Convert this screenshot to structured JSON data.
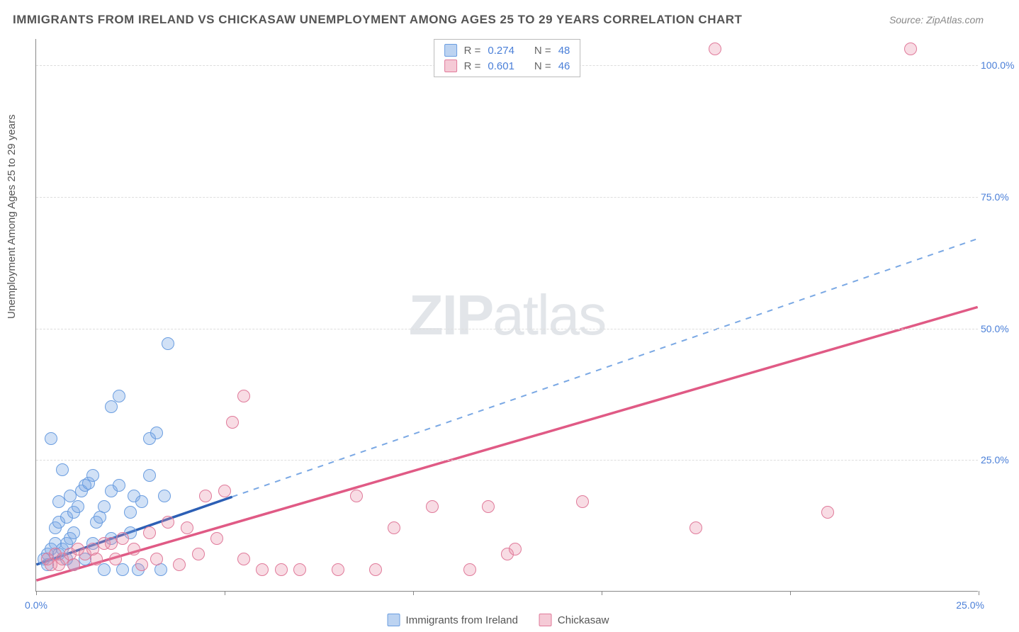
{
  "title": "IMMIGRANTS FROM IRELAND VS CHICKASAW UNEMPLOYMENT AMONG AGES 25 TO 29 YEARS CORRELATION CHART",
  "source": "Source: ZipAtlas.com",
  "ylabel": "Unemployment Among Ages 25 to 29 years",
  "watermark_a": "ZIP",
  "watermark_b": "atlas",
  "chart": {
    "type": "scatter",
    "xlim": [
      0,
      25
    ],
    "ylim": [
      0,
      105
    ],
    "xticks": [
      0,
      5,
      10,
      15,
      20,
      25
    ],
    "xtick_labels": [
      "0.0%",
      "",
      "",
      "",
      "",
      "25.0%"
    ],
    "yticks": [
      25,
      50,
      75,
      100
    ],
    "ytick_labels": [
      "25.0%",
      "50.0%",
      "75.0%",
      "100.0%"
    ],
    "grid_color": "#dddddd",
    "axis_color": "#888888",
    "background_color": "#ffffff"
  },
  "series": {
    "blue": {
      "label": "Immigrants from Ireland",
      "marker_fill": "rgba(122,168,228,0.35)",
      "marker_stroke": "#6a9de0",
      "line_color": "#2c5fb5",
      "line_dash_color": "#7aa8e4",
      "R": "0.274",
      "N": "48",
      "trend_start": [
        0,
        5
      ],
      "trend_end": [
        25,
        67
      ],
      "solid_until_x": 5.2,
      "points": [
        [
          0.3,
          7
        ],
        [
          0.4,
          8
        ],
        [
          0.5,
          9
        ],
        [
          0.6,
          7
        ],
        [
          0.7,
          8
        ],
        [
          0.8,
          9
        ],
        [
          0.9,
          10
        ],
        [
          1.0,
          11
        ],
        [
          0.5,
          12
        ],
        [
          0.6,
          13
        ],
        [
          0.8,
          14
        ],
        [
          1.0,
          15
        ],
        [
          1.1,
          16
        ],
        [
          1.2,
          19
        ],
        [
          1.3,
          20
        ],
        [
          1.4,
          20.5
        ],
        [
          0.6,
          17
        ],
        [
          0.9,
          18
        ],
        [
          1.5,
          22
        ],
        [
          1.6,
          13
        ],
        [
          1.7,
          14
        ],
        [
          1.8,
          16
        ],
        [
          2.0,
          19
        ],
        [
          2.2,
          20
        ],
        [
          2.5,
          15
        ],
        [
          2.6,
          18
        ],
        [
          2.8,
          17
        ],
        [
          3.0,
          29
        ],
        [
          3.2,
          30
        ],
        [
          2.0,
          35
        ],
        [
          2.2,
          37
        ],
        [
          3.5,
          47
        ],
        [
          0.4,
          29
        ],
        [
          0.7,
          23
        ],
        [
          1.0,
          5
        ],
        [
          1.3,
          6
        ],
        [
          1.8,
          4
        ],
        [
          2.3,
          4
        ],
        [
          2.7,
          4
        ],
        [
          3.3,
          4
        ],
        [
          1.5,
          9
        ],
        [
          2.0,
          10
        ],
        [
          2.5,
          11
        ],
        [
          3.0,
          22
        ],
        [
          3.4,
          18
        ],
        [
          0.2,
          6
        ],
        [
          0.3,
          5
        ],
        [
          0.8,
          6
        ]
      ]
    },
    "pink": {
      "label": "Chickasaw",
      "marker_fill": "rgba(232,138,164,0.30)",
      "marker_stroke": "#e07a9a",
      "line_color": "#e05a85",
      "R": "0.601",
      "N": "46",
      "trend_start": [
        0,
        2
      ],
      "trend_end": [
        25,
        54
      ],
      "points": [
        [
          0.3,
          6
        ],
        [
          0.5,
          7
        ],
        [
          0.7,
          6
        ],
        [
          0.9,
          7
        ],
        [
          1.1,
          8
        ],
        [
          1.3,
          7
        ],
        [
          1.5,
          8
        ],
        [
          1.8,
          9
        ],
        [
          2.0,
          9
        ],
        [
          2.3,
          10
        ],
        [
          2.6,
          8
        ],
        [
          3.0,
          11
        ],
        [
          3.5,
          13
        ],
        [
          4.0,
          12
        ],
        [
          4.5,
          18
        ],
        [
          5.0,
          19
        ],
        [
          5.2,
          32
        ],
        [
          5.5,
          37
        ],
        [
          4.8,
          10
        ],
        [
          6.0,
          4
        ],
        [
          5.5,
          6
        ],
        [
          6.5,
          4
        ],
        [
          7.0,
          4
        ],
        [
          8.0,
          4
        ],
        [
          8.5,
          18
        ],
        [
          9.0,
          4
        ],
        [
          9.5,
          12
        ],
        [
          10.5,
          16
        ],
        [
          11.5,
          4
        ],
        [
          12.0,
          16
        ],
        [
          12.5,
          7
        ],
        [
          12.7,
          8
        ],
        [
          14.5,
          17
        ],
        [
          17.5,
          12
        ],
        [
          18.0,
          103
        ],
        [
          21.0,
          15
        ],
        [
          23.2,
          103
        ],
        [
          3.2,
          6
        ],
        [
          2.8,
          5
        ],
        [
          1.0,
          5
        ],
        [
          1.6,
          6
        ],
        [
          2.1,
          6
        ],
        [
          0.4,
          5
        ],
        [
          0.6,
          5
        ],
        [
          3.8,
          5
        ],
        [
          4.3,
          7
        ]
      ]
    }
  },
  "legend_top": [
    {
      "series": "blue",
      "R_label": "R =",
      "R": "0.274",
      "N_label": "N =",
      "N": "48"
    },
    {
      "series": "pink",
      "R_label": "R =",
      "R": "0.601",
      "N_label": "N =",
      "N": "46"
    }
  ],
  "legend_bottom": [
    {
      "series": "blue",
      "label": "Immigrants from Ireland"
    },
    {
      "series": "pink",
      "label": "Chickasaw"
    }
  ]
}
